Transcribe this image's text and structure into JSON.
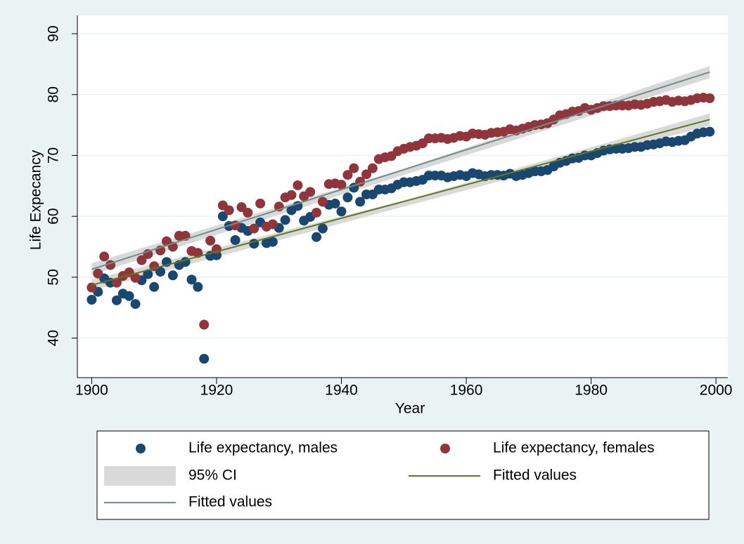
{
  "chart_data": {
    "type": "scatter",
    "x_label": "Year",
    "y_label": "Life Expecancy",
    "xlim": [
      1897.7,
      2001.9
    ],
    "ylim": [
      33.5,
      93
    ],
    "xticks": [
      1900,
      1920,
      1940,
      1960,
      1980,
      2000
    ],
    "yticks": [
      40,
      50,
      60,
      70,
      80,
      90
    ],
    "grid": true,
    "x": [
      1900,
      1901,
      1902,
      1903,
      1904,
      1905,
      1906,
      1907,
      1908,
      1909,
      1910,
      1911,
      1912,
      1913,
      1914,
      1915,
      1916,
      1917,
      1918,
      1919,
      1920,
      1921,
      1922,
      1923,
      1924,
      1925,
      1926,
      1927,
      1928,
      1929,
      1930,
      1931,
      1932,
      1933,
      1934,
      1935,
      1936,
      1937,
      1938,
      1939,
      1940,
      1941,
      1942,
      1943,
      1944,
      1945,
      1946,
      1947,
      1948,
      1949,
      1950,
      1951,
      1952,
      1953,
      1954,
      1955,
      1956,
      1957,
      1958,
      1959,
      1960,
      1961,
      1962,
      1963,
      1964,
      1965,
      1966,
      1967,
      1968,
      1969,
      1970,
      1971,
      1972,
      1973,
      1974,
      1975,
      1976,
      1977,
      1978,
      1979,
      1980,
      1981,
      1982,
      1983,
      1984,
      1985,
      1986,
      1987,
      1988,
      1989,
      1990,
      1991,
      1992,
      1993,
      1994,
      1995,
      1996,
      1997,
      1998,
      1999
    ],
    "series": [
      {
        "name": "Life expectancy, males",
        "color": "#1a476f",
        "values": [
          46.3,
          47.6,
          49.8,
          49.1,
          46.2,
          47.3,
          46.9,
          45.6,
          49.5,
          50.5,
          48.4,
          50.9,
          52.5,
          50.3,
          52.0,
          52.5,
          49.6,
          48.4,
          36.6,
          53.5,
          53.6,
          60.0,
          58.4,
          56.1,
          58.1,
          57.6,
          55.5,
          59.0,
          55.6,
          55.8,
          58.1,
          59.4,
          61.0,
          61.7,
          59.3,
          59.9,
          56.6,
          58.0,
          61.9,
          62.1,
          60.8,
          63.1,
          64.7,
          62.4,
          63.6,
          63.6,
          64.4,
          64.4,
          64.6,
          65.2,
          65.6,
          65.6,
          65.8,
          66.0,
          66.7,
          66.7,
          66.7,
          66.4,
          66.6,
          66.8,
          66.6,
          67.1,
          66.9,
          66.6,
          66.8,
          66.8,
          66.7,
          67.0,
          66.6,
          66.8,
          67.1,
          67.4,
          67.4,
          67.6,
          68.2,
          68.8,
          69.1,
          69.5,
          69.6,
          70.0,
          70.0,
          70.4,
          70.8,
          71.0,
          71.1,
          71.1,
          71.2,
          71.4,
          71.4,
          71.7,
          71.8,
          72.0,
          72.3,
          72.2,
          72.4,
          72.5,
          73.1,
          73.6,
          73.8,
          73.9
        ]
      },
      {
        "name": "Life expectancy, females",
        "color": "#90353b",
        "values": [
          48.3,
          50.6,
          53.4,
          52.0,
          49.1,
          50.2,
          50.8,
          49.9,
          52.8,
          53.8,
          51.8,
          54.4,
          55.9,
          55.0,
          56.8,
          56.8,
          54.3,
          54.0,
          42.2,
          56.0,
          54.6,
          61.8,
          61.0,
          58.5,
          61.5,
          60.6,
          58.0,
          62.1,
          58.3,
          58.7,
          61.6,
          63.1,
          63.5,
          65.1,
          63.3,
          64.0,
          60.6,
          62.4,
          65.3,
          65.4,
          65.2,
          66.8,
          67.9,
          65.7,
          66.9,
          67.9,
          69.4,
          69.7,
          69.9,
          70.7,
          71.1,
          71.4,
          71.6,
          72.0,
          72.8,
          72.8,
          72.9,
          72.7,
          72.9,
          73.2,
          73.1,
          73.6,
          73.5,
          73.4,
          73.7,
          73.8,
          73.9,
          74.3,
          74.1,
          74.4,
          74.7,
          75.0,
          75.1,
          75.3,
          75.9,
          76.6,
          76.8,
          77.2,
          77.3,
          77.8,
          77.5,
          77.8,
          78.1,
          78.1,
          78.2,
          78.2,
          78.2,
          78.4,
          78.3,
          78.5,
          78.8,
          78.9,
          79.1,
          78.8,
          79.0,
          78.9,
          79.1,
          79.4,
          79.5,
          79.4
        ]
      }
    ],
    "ci": {
      "name": "95% CI",
      "color": "#d9d9d9",
      "x": [
        1900,
        1950,
        1999
      ],
      "bands": [
        {
          "lower": [
            47.8,
            61.6,
            74.9
          ],
          "upper": [
            49.6,
            62.6,
            76.9
          ]
        },
        {
          "lower": [
            50.4,
            66.8,
            82.7
          ],
          "upper": [
            52.3,
            67.8,
            84.7
          ]
        }
      ]
    },
    "fits": [
      {
        "name": "Fitted values",
        "color": "#5d7a1f",
        "x": [
          1900,
          1999
        ],
        "values": [
          48.7,
          75.9
        ]
      },
      {
        "name": "Fitted values",
        "color": "#6f8e8a",
        "x": [
          1900,
          1999
        ],
        "values": [
          51.3,
          83.7
        ]
      }
    ]
  }
}
